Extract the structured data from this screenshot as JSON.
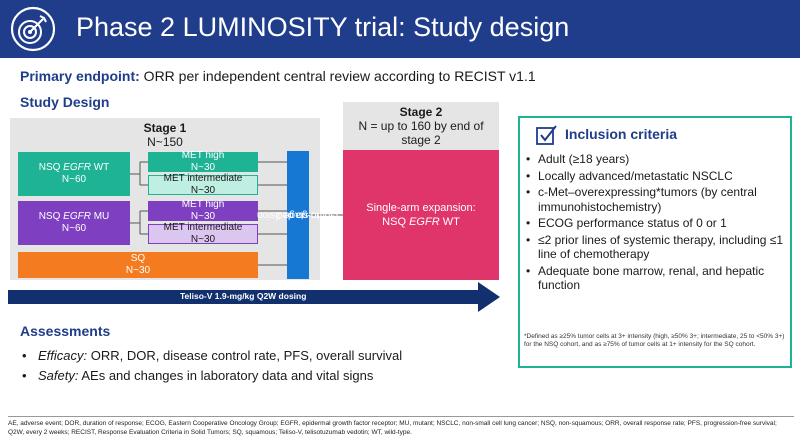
{
  "header": {
    "title": "Phase 2 LUMINOSITY trial: Study design",
    "logo_icon": "target-icon"
  },
  "primary_endpoint": {
    "label": "Primary endpoint:",
    "text": " ORR per independent central review according to RECIST v1.1"
  },
  "study_design": {
    "heading": "Study Design",
    "stage1": {
      "title": "Stage 1",
      "n": "N~150",
      "cohorts": [
        {
          "label_pre": "NSQ ",
          "label_em": "EGFR",
          "label_post": " WT",
          "n": "N~60"
        },
        {
          "label_pre": "NSQ ",
          "label_em": "EGFR",
          "label_post": " MU",
          "n": "N~60"
        }
      ],
      "subgroups": [
        {
          "label": "MET high",
          "n": "N~30"
        },
        {
          "label": "MET intermediate",
          "n": "N~30"
        },
        {
          "label": "MET high",
          "n": "N~30"
        },
        {
          "label": "MET intermediate",
          "n": "N~30"
        }
      ],
      "sq": {
        "label": "SQ",
        "n": "N~30"
      }
    },
    "decision": {
      "line1": "Go/no-go decision",
      "line2": "to stage 2"
    },
    "stage2": {
      "title": "Stage 2",
      "n": "N = up to 160 by end of stage 2",
      "expansion_line1": "Single-arm expansion:",
      "expansion_pre": "NSQ ",
      "expansion_em": "EGFR",
      "expansion_post": " WT"
    },
    "dosing": "Teliso-V 1.9-mg/kg Q2W dosing"
  },
  "inclusion": {
    "title": "Inclusion criteria",
    "icon": "checkbox-icon",
    "items": [
      "Adult (≥18 years)",
      "Locally advanced/metastatic NSCLC",
      "c-Met–overexpressing*tumors (by central immunohistochemistry)",
      "ECOG performance status of 0 or 1",
      "≤2 prior lines of systemic therapy, including ≤1 line of chemotherapy",
      "Adequate bone marrow, renal, and hepatic function"
    ],
    "footnote": "*Defined as ≥25% tumor cells at 3+ intensity (high, ≥50% 3+; intermediate, 25 to <50% 3+) for the NSQ cohort, and as ≥75% of tumor cells at 1+ intensity for the SQ cohort."
  },
  "assessments": {
    "heading": "Assessments",
    "items": [
      {
        "label": "Efficacy:",
        "text": " ORR, DOR, disease control rate, PFS, overall survival"
      },
      {
        "label": "Safety:",
        "text": " AEs and changes in laboratory data and vital signs"
      }
    ]
  },
  "footnote": "AE, adverse event; DOR, duration of response; ECOG, Eastern Cooperative Oncology Group; EGFR, epidermal growth factor receptor; MU, mutant; NSCLC, non-small cell lung cancer; NSQ, non-squamous; ORR, overall response rate; PFS, progression-free survival; Q2W, every 2 weeks; RECIST, Response Evaluation Criteria in Solid Tumors; SQ, squamous; Teliso-V, telisotuzumab vedotin; WT, wild-type.",
  "colors": {
    "header": "#1f3d8a",
    "teal": "#1db394",
    "purple": "#7e3fc1",
    "orange": "#f47b20",
    "blue": "#1778d4",
    "pink": "#e0356b",
    "arrow": "#12306e"
  }
}
